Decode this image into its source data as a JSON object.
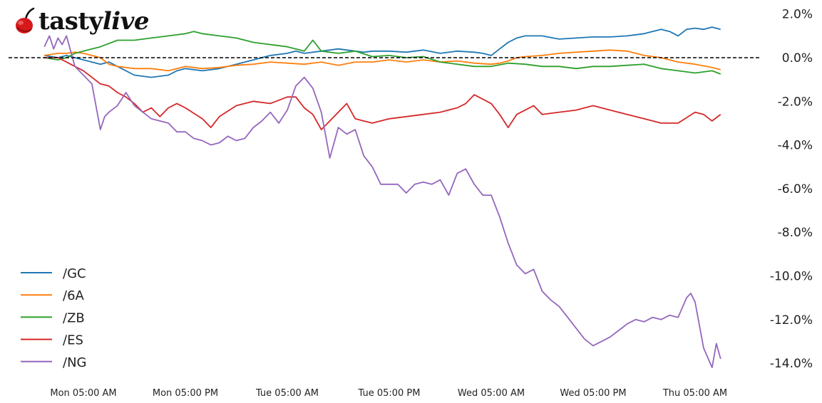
{
  "brand": {
    "name_part1": "tasty",
    "name_part2": "live",
    "logo_icon": "cherry-icon",
    "logo_color": "#d7191c"
  },
  "chart_data": {
    "type": "line",
    "title": "",
    "xlabel": "",
    "ylabel": "",
    "y_axis_position": "right",
    "ylim": [
      -14.5,
      2.5
    ],
    "yticks": [
      2.0,
      0.0,
      -2.0,
      -4.0,
      -6.0,
      -8.0,
      -10.0,
      -12.0,
      -14.0
    ],
    "ytick_labels": [
      "2.0%",
      "0.0%",
      "-2.0%",
      "-4.0%",
      "-6.0%",
      "-8.0%",
      "-10.0%",
      "-12.0%",
      "-14.0%"
    ],
    "x_unit": "hours since Mon 05:00 AM",
    "xlim": [
      -4.8,
      75.5
    ],
    "xticks": [
      0,
      12,
      24,
      36,
      48,
      60,
      72
    ],
    "xtick_labels": [
      "Mon 05:00 AM",
      "Mon 05:00 PM",
      "Tue 05:00 AM",
      "Tue 05:00 PM",
      "Wed 05:00 AM",
      "Wed 05:00 PM",
      "Thu 05:00 AM"
    ],
    "grid": false,
    "reference_line": {
      "y": 0.0,
      "style": "dashed",
      "color": "#000000"
    },
    "legend_position": "lower left",
    "series": [
      {
        "name": "/GC",
        "color": "#1f77b4",
        "x": [
          -4.6,
          -3,
          -2,
          -1,
          0,
          1,
          2,
          3,
          4,
          6,
          8,
          10,
          11,
          12,
          14,
          16,
          18,
          20,
          22,
          24,
          25,
          26,
          28,
          30,
          32,
          33,
          34,
          36,
          38,
          40,
          42,
          44,
          46,
          47,
          48,
          49,
          50,
          51,
          52,
          54,
          56,
          58,
          60,
          62,
          64,
          66,
          68,
          69,
          70,
          71,
          72,
          73,
          74,
          75
        ],
        "y": [
          0.1,
          0.0,
          0.1,
          0.0,
          -0.1,
          -0.2,
          -0.3,
          -0.2,
          -0.4,
          -0.8,
          -0.9,
          -0.8,
          -0.6,
          -0.5,
          -0.6,
          -0.5,
          -0.3,
          -0.1,
          0.1,
          0.2,
          0.3,
          0.2,
          0.3,
          0.4,
          0.3,
          0.25,
          0.3,
          0.3,
          0.25,
          0.35,
          0.2,
          0.3,
          0.25,
          0.2,
          0.1,
          0.4,
          0.7,
          0.9,
          1.0,
          1.0,
          0.85,
          0.9,
          0.95,
          0.95,
          1.0,
          1.1,
          1.3,
          1.2,
          1.0,
          1.3,
          1.35,
          1.3,
          1.4,
          1.3
        ]
      },
      {
        "name": "/6A",
        "color": "#ff7f0e",
        "x": [
          -4.6,
          -3,
          -2,
          -1,
          0,
          1,
          2,
          3,
          4,
          6,
          8,
          10,
          12,
          14,
          16,
          18,
          20,
          22,
          24,
          26,
          28,
          30,
          32,
          34,
          36,
          38,
          40,
          42,
          44,
          46,
          48,
          49,
          50,
          51,
          52,
          54,
          56,
          58,
          60,
          62,
          64,
          66,
          68,
          70,
          72,
          74,
          75
        ],
        "y": [
          0.1,
          0.2,
          0.2,
          0.25,
          0.2,
          0.1,
          0.0,
          -0.3,
          -0.4,
          -0.5,
          -0.5,
          -0.6,
          -0.4,
          -0.5,
          -0.45,
          -0.35,
          -0.3,
          -0.2,
          -0.25,
          -0.3,
          -0.2,
          -0.35,
          -0.2,
          -0.2,
          -0.1,
          -0.2,
          -0.1,
          -0.2,
          -0.15,
          -0.25,
          -0.3,
          -0.25,
          -0.15,
          0.0,
          0.05,
          0.1,
          0.2,
          0.25,
          0.3,
          0.35,
          0.3,
          0.1,
          0.0,
          -0.2,
          -0.3,
          -0.45,
          -0.55
        ]
      },
      {
        "name": "/ZB",
        "color": "#2ca02c",
        "x": [
          -4.6,
          -3,
          -2,
          -1,
          0,
          2,
          4,
          6,
          8,
          10,
          12,
          13,
          14,
          16,
          18,
          20,
          22,
          24,
          26,
          27,
          28,
          30,
          32,
          34,
          36,
          38,
          40,
          42,
          44,
          46,
          48,
          50,
          52,
          54,
          56,
          58,
          60,
          62,
          64,
          66,
          68,
          70,
          72,
          74,
          75
        ],
        "y": [
          0.0,
          -0.1,
          0.0,
          0.2,
          0.3,
          0.5,
          0.8,
          0.8,
          0.9,
          1.0,
          1.1,
          1.2,
          1.1,
          1.0,
          0.9,
          0.7,
          0.6,
          0.5,
          0.3,
          0.8,
          0.3,
          0.2,
          0.3,
          0.05,
          0.1,
          0.0,
          0.05,
          -0.2,
          -0.3,
          -0.4,
          -0.4,
          -0.25,
          -0.3,
          -0.4,
          -0.4,
          -0.5,
          -0.4,
          -0.4,
          -0.35,
          -0.3,
          -0.5,
          -0.6,
          -0.7,
          -0.6,
          -0.75
        ]
      },
      {
        "name": "/ES",
        "color": "#d62728",
        "x": [
          -4.6,
          -3,
          -2,
          -1,
          0,
          1,
          2,
          3,
          4,
          5,
          6,
          7,
          8,
          9,
          10,
          11,
          12,
          14,
          15,
          16,
          18,
          20,
          22,
          24,
          25,
          26,
          27,
          28,
          29,
          30,
          31,
          32,
          33,
          34,
          36,
          38,
          40,
          42,
          44,
          45,
          46,
          47,
          48,
          49,
          50,
          51,
          52,
          53,
          54,
          56,
          58,
          60,
          62,
          64,
          66,
          68,
          70,
          72,
          73,
          74,
          75
        ],
        "y": [
          0.0,
          0.0,
          -0.2,
          -0.4,
          -0.6,
          -0.9,
          -1.2,
          -1.3,
          -1.6,
          -1.8,
          -2.1,
          -2.5,
          -2.3,
          -2.7,
          -2.3,
          -2.1,
          -2.3,
          -2.8,
          -3.2,
          -2.7,
          -2.2,
          -2.0,
          -2.1,
          -1.8,
          -1.8,
          -2.3,
          -2.6,
          -3.3,
          -2.9,
          -2.5,
          -2.1,
          -2.8,
          -2.9,
          -3.0,
          -2.8,
          -2.7,
          -2.6,
          -2.5,
          -2.3,
          -2.1,
          -1.7,
          -1.9,
          -2.1,
          -2.6,
          -3.2,
          -2.6,
          -2.4,
          -2.2,
          -2.6,
          -2.5,
          -2.4,
          -2.2,
          -2.4,
          -2.6,
          -2.8,
          -3.0,
          -3.0,
          -2.5,
          -2.6,
          -2.9,
          -2.6
        ]
      },
      {
        "name": "/NG",
        "color": "#9467bd",
        "x": [
          -4.6,
          -4,
          -3.5,
          -3,
          -2.5,
          -2,
          -1,
          0,
          1,
          2,
          2.5,
          3,
          4,
          5,
          6,
          7,
          8,
          9,
          10,
          11,
          12,
          13,
          14,
          15,
          16,
          17,
          18,
          19,
          20,
          21,
          22,
          23,
          24,
          25,
          26,
          27,
          28,
          29,
          30,
          31,
          32,
          33,
          34,
          35,
          36,
          37,
          38,
          39,
          40,
          41,
          42,
          43,
          44,
          45,
          46,
          47,
          48,
          49,
          50,
          51,
          52,
          53,
          54,
          55,
          56,
          57,
          58,
          59,
          60,
          61,
          62,
          63,
          64,
          65,
          66,
          67,
          68,
          69,
          70,
          71,
          71.5,
          72,
          73,
          74,
          74.5,
          75
        ],
        "y": [
          0.5,
          1.0,
          0.4,
          0.9,
          0.6,
          1.0,
          -0.4,
          -0.8,
          -1.2,
          -3.3,
          -2.7,
          -2.5,
          -2.2,
          -1.6,
          -2.2,
          -2.5,
          -2.8,
          -2.9,
          -3.0,
          -3.4,
          -3.4,
          -3.7,
          -3.8,
          -4.0,
          -3.9,
          -3.6,
          -3.8,
          -3.7,
          -3.2,
          -2.9,
          -2.5,
          -3.0,
          -2.4,
          -1.3,
          -0.9,
          -1.4,
          -2.5,
          -4.6,
          -3.2,
          -3.5,
          -3.3,
          -4.5,
          -5.0,
          -5.8,
          -5.8,
          -5.8,
          -6.2,
          -5.8,
          -5.7,
          -5.8,
          -5.6,
          -6.3,
          -5.3,
          -5.1,
          -5.8,
          -6.3,
          -6.3,
          -7.3,
          -8.5,
          -9.5,
          -9.9,
          -9.7,
          -10.7,
          -11.1,
          -11.4,
          -11.9,
          -12.4,
          -12.9,
          -13.2,
          -13.0,
          -12.8,
          -12.5,
          -12.2,
          -12.0,
          -12.1,
          -11.9,
          -12.0,
          -11.8,
          -11.9,
          -11.0,
          -10.8,
          -11.2,
          -13.3,
          -14.2,
          -13.1,
          -13.8
        ]
      }
    ]
  }
}
